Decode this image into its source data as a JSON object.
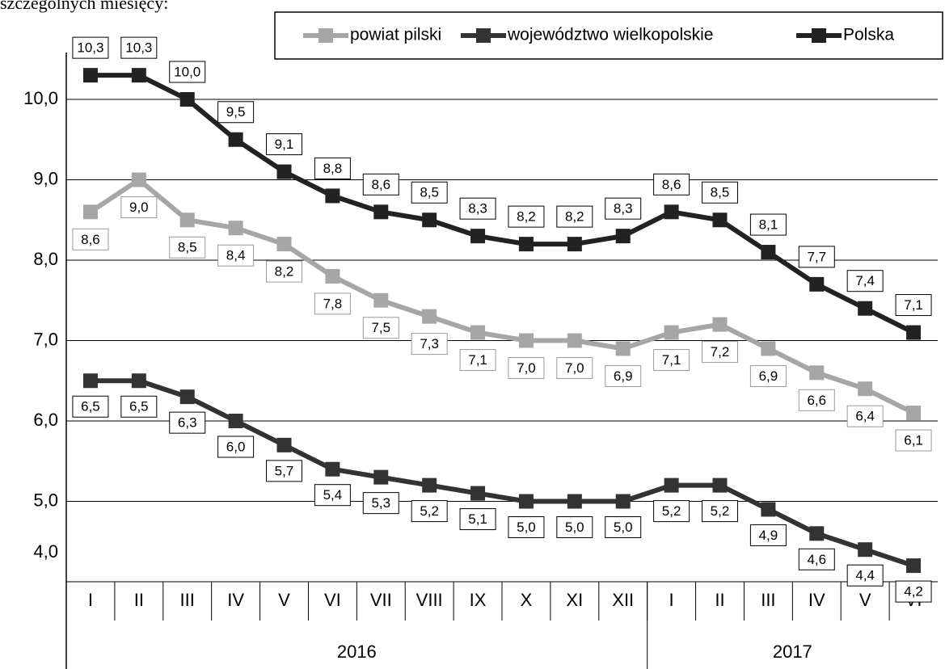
{
  "chart_data": {
    "type": "line",
    "caption": "szczególnych miesięcy:",
    "categories": [
      "I",
      "II",
      "III",
      "IV",
      "V",
      "VI",
      "VII",
      "VIII",
      "IX",
      "X",
      "XI",
      "XII",
      "I",
      "II",
      "III",
      "IV",
      "V",
      "VI"
    ],
    "x_groups": [
      {
        "label": "2016",
        "span": 12
      },
      {
        "label": "2017",
        "span": 6
      }
    ],
    "series": [
      {
        "name": "powiat pilski",
        "color": "#a6a6a6",
        "values": [
          8.6,
          9.0,
          8.5,
          8.4,
          8.2,
          7.8,
          7.5,
          7.3,
          7.1,
          7.0,
          7.0,
          6.9,
          7.1,
          7.2,
          6.9,
          6.6,
          6.4,
          6.1
        ],
        "value_labels": [
          "8,6",
          "9,0",
          "8,5",
          "8,4",
          "8,2",
          "7,8",
          "7,5",
          "7,3",
          "7,1",
          "7,0",
          "7,0",
          "6,9",
          "7,1",
          "7,2",
          "6,9",
          "6,6",
          "6,4",
          "6,1"
        ]
      },
      {
        "name": "województwo wielkopolskie",
        "color": "#333333",
        "values": [
          6.5,
          6.5,
          6.3,
          6.0,
          5.7,
          5.4,
          5.3,
          5.2,
          5.1,
          5.0,
          5.0,
          5.0,
          5.2,
          5.2,
          4.9,
          4.6,
          4.4,
          4.2
        ],
        "value_labels": [
          "6,5",
          "6,5",
          "6,3",
          "6,0",
          "5,7",
          "5,4",
          "5,3",
          "5,2",
          "5,1",
          "5,0",
          "5,0",
          "5,0",
          "5,2",
          "5,2",
          "4,9",
          "4,6",
          "4,4",
          "4,2"
        ]
      },
      {
        "name": "Polska",
        "color": "#222222",
        "values": [
          10.3,
          10.3,
          10.0,
          9.5,
          9.1,
          8.8,
          8.6,
          8.5,
          8.3,
          8.2,
          8.2,
          8.3,
          8.6,
          8.5,
          8.1,
          7.7,
          7.4,
          7.1
        ],
        "value_labels": [
          "10,3",
          "10,3",
          "10,0",
          "9,5",
          "9,1",
          "8,8",
          "8,6",
          "8,5",
          "8,3",
          "8,2",
          "8,2",
          "8,3",
          "8,6",
          "8,5",
          "8,1",
          "7,7",
          "7,4",
          "7,1"
        ]
      }
    ],
    "ylim": [
      4.0,
      10.0
    ],
    "yticks": [
      {
        "value": 4.0,
        "label": "4,0"
      },
      {
        "value": 5.0,
        "label": "5,0"
      },
      {
        "value": 6.0,
        "label": "6,0"
      },
      {
        "value": 7.0,
        "label": "7,0"
      },
      {
        "value": 8.0,
        "label": "8,0"
      },
      {
        "value": 9.0,
        "label": "9,0"
      },
      {
        "value": 10.0,
        "label": "10,0"
      }
    ],
    "grid": true
  }
}
